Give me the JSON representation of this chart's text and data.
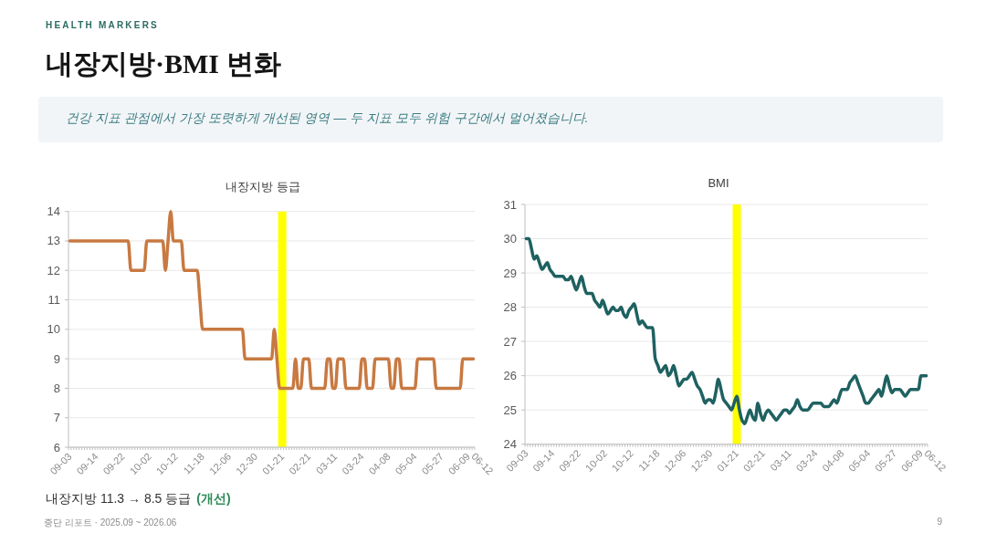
{
  "chart_data": [
    {
      "type": "other",
      "title": "내장지방·BMI 변화",
      "subtitle": "건강 지표 관점에서 가장 또렷하게 개선된 영역 — 두 지표 모두 위험 구간에서 멀어졌습니다.",
      "annotations": [
        "HEALTH MARKERS",
        "중단 리포트 · 2025.09 ~ 2026.06",
        "9"
      ]
    },
    {
      "type": "line",
      "title": "내장지방 등급",
      "categories": [
        "09-03",
        null,
        null,
        null,
        null,
        null,
        null,
        null,
        null,
        null,
        "09-14",
        null,
        null,
        null,
        null,
        null,
        null,
        null,
        null,
        null,
        "09-22",
        null,
        null,
        null,
        null,
        null,
        null,
        null,
        null,
        null,
        "10-02",
        null,
        null,
        null,
        null,
        null,
        null,
        null,
        null,
        null,
        "10-12",
        null,
        null,
        null,
        null,
        null,
        null,
        null,
        null,
        null,
        "11-18",
        null,
        null,
        null,
        null,
        null,
        null,
        null,
        null,
        null,
        "12-06",
        null,
        null,
        null,
        null,
        null,
        null,
        null,
        null,
        null,
        "12-30",
        null,
        null,
        null,
        null,
        null,
        null,
        null,
        null,
        null,
        "01-21",
        null,
        null,
        null,
        null,
        null,
        null,
        null,
        null,
        null,
        "02-21",
        null,
        null,
        null,
        null,
        null,
        null,
        null,
        null,
        null,
        "03-11",
        null,
        null,
        null,
        null,
        null,
        null,
        null,
        null,
        null,
        "03-24",
        null,
        null,
        null,
        null,
        null,
        null,
        null,
        null,
        null,
        "04-08",
        null,
        null,
        null,
        null,
        null,
        null,
        null,
        null,
        null,
        "05-04",
        null,
        null,
        null,
        null,
        null,
        null,
        null,
        null,
        null,
        "05-27",
        null,
        null,
        null,
        null,
        null,
        null,
        null,
        null,
        null,
        "06-09",
        null,
        "06-12"
      ],
      "series": [
        {
          "color": "#c87941",
          "values": [
            13,
            13,
            13,
            13,
            13,
            13,
            13,
            13,
            13,
            13,
            13,
            13,
            13,
            13,
            13,
            13,
            13,
            13,
            13,
            13,
            13,
            13,
            13,
            12,
            12,
            12,
            12,
            12,
            12,
            13,
            13,
            13,
            13,
            13,
            13,
            13,
            12,
            13,
            14,
            13,
            13,
            13,
            13,
            12,
            12,
            12,
            12,
            12,
            12,
            11,
            10,
            10,
            10,
            10,
            10,
            10,
            10,
            10,
            10,
            10,
            10,
            10,
            10,
            10,
            10,
            10,
            9,
            9,
            9,
            9,
            9,
            9,
            9,
            9,
            9,
            9,
            9,
            10,
            9,
            8,
            8,
            8,
            8,
            8,
            8,
            9,
            8,
            8,
            9,
            9,
            9,
            8,
            8,
            8,
            8,
            8,
            8,
            9,
            9,
            8,
            8,
            9,
            9,
            9,
            8,
            8,
            8,
            8,
            8,
            8,
            9,
            9,
            8,
            8,
            8,
            9,
            9,
            9,
            9,
            9,
            9,
            8,
            8,
            9,
            9,
            8,
            8,
            8,
            8,
            8,
            8,
            9,
            9,
            9,
            9,
            9,
            9,
            9,
            8,
            8,
            8,
            8,
            8,
            8,
            8,
            8,
            8,
            8,
            9,
            9,
            9,
            9,
            9
          ]
        }
      ],
      "ylim": [
        6,
        14
      ],
      "yticks": [
        6,
        7,
        8,
        9,
        10,
        11,
        12,
        13,
        14
      ],
      "grid": "y",
      "ref_lines": [
        {
          "axis": "x",
          "value": "01-21",
          "color": "#ffff00"
        }
      ],
      "annotations": [
        "내장지방 11.3 → 8.5 등급",
        "(개선)"
      ]
    },
    {
      "type": "line",
      "title": "BMI",
      "categories": [
        "09-03",
        null,
        null,
        null,
        null,
        null,
        null,
        null,
        null,
        null,
        "09-14",
        null,
        null,
        null,
        null,
        null,
        null,
        null,
        null,
        null,
        "09-22",
        null,
        null,
        null,
        null,
        null,
        null,
        null,
        null,
        null,
        "10-02",
        null,
        null,
        null,
        null,
        null,
        null,
        null,
        null,
        null,
        "10-12",
        null,
        null,
        null,
        null,
        null,
        null,
        null,
        null,
        null,
        "11-18",
        null,
        null,
        null,
        null,
        null,
        null,
        null,
        null,
        null,
        "12-06",
        null,
        null,
        null,
        null,
        null,
        null,
        null,
        null,
        null,
        "12-30",
        null,
        null,
        null,
        null,
        null,
        null,
        null,
        null,
        null,
        "01-21",
        null,
        null,
        null,
        null,
        null,
        null,
        null,
        null,
        null,
        "02-21",
        null,
        null,
        null,
        null,
        null,
        null,
        null,
        null,
        null,
        "03-11",
        null,
        null,
        null,
        null,
        null,
        null,
        null,
        null,
        null,
        "03-24",
        null,
        null,
        null,
        null,
        null,
        null,
        null,
        null,
        null,
        "04-08",
        null,
        null,
        null,
        null,
        null,
        null,
        null,
        null,
        null,
        "05-04",
        null,
        null,
        null,
        null,
        null,
        null,
        null,
        null,
        null,
        "05-27",
        null,
        null,
        null,
        null,
        null,
        null,
        null,
        null,
        null,
        "06-09",
        null,
        "06-12"
      ],
      "series": [
        {
          "color": "#1f6161",
          "values": [
            30.0,
            30.0,
            29.7,
            29.4,
            29.5,
            29.3,
            29.1,
            29.2,
            29.3,
            29.1,
            29.0,
            28.9,
            28.9,
            28.9,
            28.9,
            28.8,
            28.8,
            28.9,
            28.7,
            28.5,
            28.7,
            28.9,
            28.6,
            28.4,
            28.4,
            28.4,
            28.2,
            28.1,
            28.0,
            28.2,
            28.0,
            27.8,
            27.9,
            28.0,
            27.9,
            27.9,
            28.0,
            27.8,
            27.7,
            27.9,
            28.0,
            28.1,
            27.8,
            27.5,
            27.6,
            27.5,
            27.4,
            27.4,
            27.4,
            26.5,
            26.3,
            26.1,
            26.2,
            26.3,
            26.0,
            26.1,
            26.3,
            26.0,
            25.7,
            25.8,
            25.9,
            25.9,
            26.0,
            26.1,
            25.9,
            25.7,
            25.6,
            25.4,
            25.2,
            25.3,
            25.3,
            25.2,
            25.5,
            25.9,
            25.6,
            25.3,
            25.2,
            25.1,
            25.0,
            25.2,
            25.4,
            25.0,
            24.7,
            24.6,
            24.8,
            25.0,
            24.8,
            24.7,
            25.2,
            24.9,
            24.7,
            24.9,
            25.0,
            24.9,
            24.8,
            24.7,
            24.8,
            24.9,
            25.0,
            25.0,
            24.9,
            25.0,
            25.1,
            25.3,
            25.1,
            25.0,
            25.0,
            25.0,
            25.1,
            25.2,
            25.2,
            25.2,
            25.2,
            25.1,
            25.1,
            25.1,
            25.2,
            25.3,
            25.2,
            25.4,
            25.6,
            25.6,
            25.6,
            25.8,
            25.9,
            26.0,
            25.8,
            25.6,
            25.4,
            25.2,
            25.2,
            25.3,
            25.4,
            25.5,
            25.6,
            25.4,
            25.7,
            26.0,
            25.7,
            25.5,
            25.6,
            25.6,
            25.6,
            25.5,
            25.4,
            25.5,
            25.6,
            25.6,
            25.6,
            25.6,
            26.0,
            26.0,
            26.0
          ]
        }
      ],
      "ylim": [
        24,
        31
      ],
      "yticks": [
        24,
        25,
        26,
        27,
        28,
        29,
        30,
        31
      ],
      "grid": "y",
      "ref_lines": [
        {
          "axis": "x",
          "value": "01-21",
          "color": "#ffff00"
        }
      ]
    }
  ]
}
